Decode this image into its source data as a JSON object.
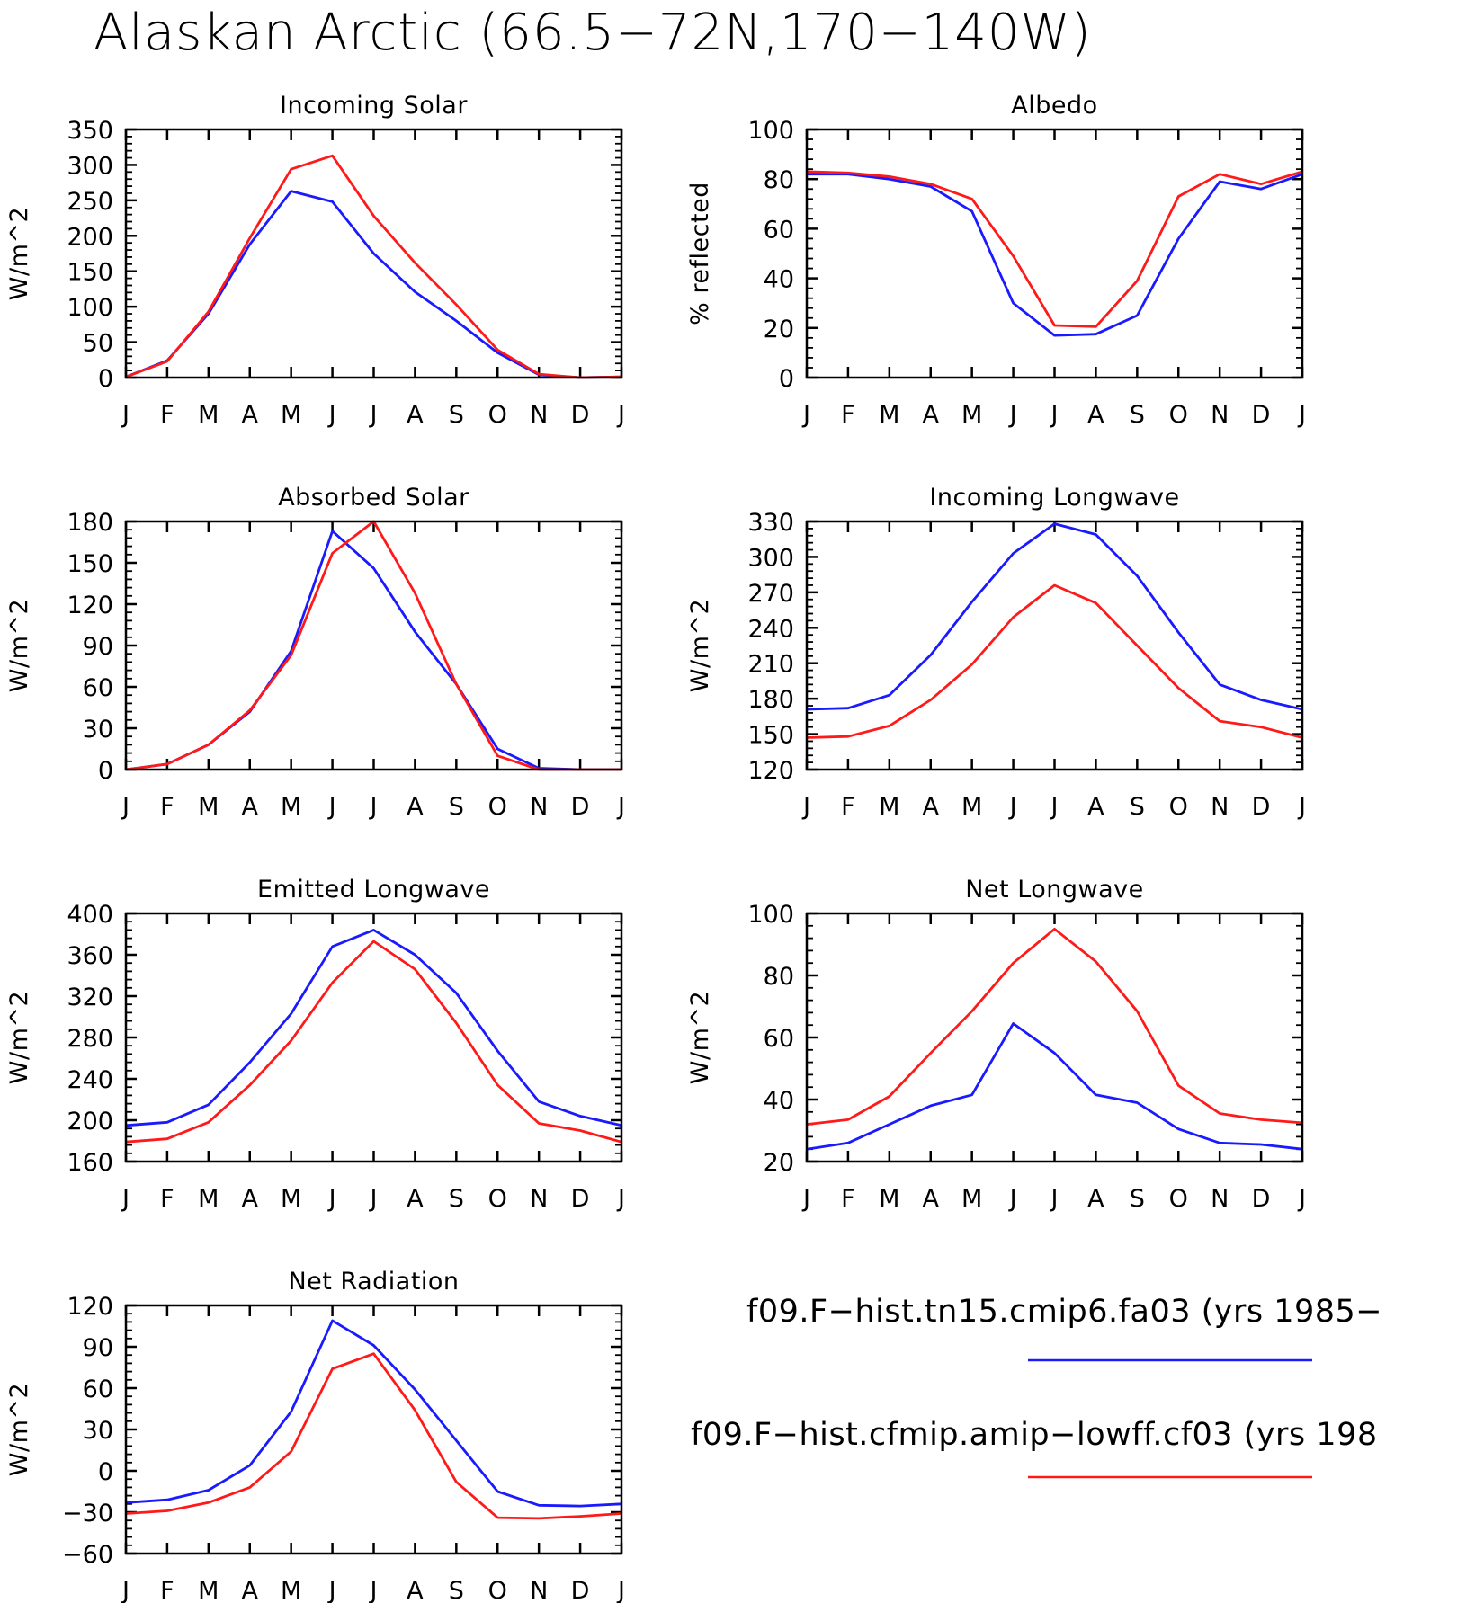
{
  "figure": {
    "title": "Alaskan Arctic (66.5−72N,170−140W)",
    "colors": {
      "run1": "#1a1aff",
      "run2": "#ff1a1a"
    }
  },
  "legend": {
    "entries": [
      {
        "label": "f09.F−hist.tn15.cmip6.fa03 (yrs 1985−",
        "color": "#1a1aff"
      },
      {
        "label": "f09.F−hist.cfmip.amip−lowff.cf03 (yrs 198",
        "color": "#ff1a1a"
      }
    ]
  },
  "chart_data": [
    {
      "type": "line",
      "title": "Incoming Solar",
      "xlabel": "",
      "ylabel": "W/m^2",
      "categories": [
        "J",
        "F",
        "M",
        "A",
        "M",
        "J",
        "J",
        "A",
        "S",
        "O",
        "N",
        "D",
        "J"
      ],
      "ylim": [
        0,
        350
      ],
      "yticks": [
        0,
        50,
        100,
        150,
        200,
        250,
        300,
        350
      ],
      "ytick_labels": [
        "0",
        "50",
        "100",
        "150",
        "200",
        "250",
        "300",
        "350"
      ],
      "series": [
        {
          "color": "#1a1aff",
          "values": [
            1,
            24,
            90,
            188,
            263,
            248,
            175,
            121,
            80,
            35,
            4,
            0,
            1
          ]
        },
        {
          "color": "#ff1a1a",
          "values": [
            1,
            23,
            93,
            197,
            294,
            313,
            228,
            162,
            103,
            39,
            5,
            0,
            1
          ]
        }
      ]
    },
    {
      "type": "line",
      "title": "Albedo",
      "xlabel": "",
      "ylabel": "% reflected",
      "categories": [
        "J",
        "F",
        "M",
        "A",
        "M",
        "J",
        "J",
        "A",
        "S",
        "O",
        "N",
        "D",
        "J"
      ],
      "ylim": [
        0,
        100
      ],
      "yticks": [
        0,
        20,
        40,
        60,
        80,
        100
      ],
      "ytick_labels": [
        "0",
        "20",
        "40",
        "60",
        "80",
        "100"
      ],
      "series": [
        {
          "color": "#1a1aff",
          "values": [
            82,
            82,
            80,
            77,
            67,
            30,
            17,
            17.5,
            25,
            56,
            79,
            76,
            82
          ]
        },
        {
          "color": "#ff1a1a",
          "values": [
            83,
            82.5,
            81,
            78,
            72,
            49,
            21,
            20.5,
            39,
            73,
            82,
            78,
            83
          ]
        }
      ]
    },
    {
      "type": "line",
      "title": "Absorbed Solar",
      "xlabel": "",
      "ylabel": "W/m^2",
      "categories": [
        "J",
        "F",
        "M",
        "A",
        "M",
        "J",
        "J",
        "A",
        "S",
        "O",
        "N",
        "D",
        "J"
      ],
      "ylim": [
        0,
        180
      ],
      "yticks": [
        0,
        30,
        60,
        90,
        120,
        150,
        180
      ],
      "ytick_labels": [
        "0",
        "30",
        "60",
        "90",
        "120",
        "150",
        "180"
      ],
      "series": [
        {
          "color": "#1a1aff",
          "values": [
            0,
            4,
            18,
            42,
            86,
            173,
            146,
            100,
            62,
            15,
            1,
            0,
            0
          ]
        },
        {
          "color": "#ff1a1a",
          "values": [
            0,
            4,
            18,
            43,
            83,
            157,
            180,
            128,
            62,
            10,
            0,
            0,
            0
          ]
        }
      ]
    },
    {
      "type": "line",
      "title": "Incoming Longwave",
      "xlabel": "",
      "ylabel": "W/m^2",
      "categories": [
        "J",
        "F",
        "M",
        "A",
        "M",
        "J",
        "J",
        "A",
        "S",
        "O",
        "N",
        "D",
        "J"
      ],
      "ylim": [
        120,
        330
      ],
      "yticks": [
        120,
        150,
        180,
        210,
        240,
        270,
        300,
        330
      ],
      "ytick_labels": [
        "120",
        "150",
        "180",
        "210",
        "240",
        "270",
        "300",
        "330"
      ],
      "series": [
        {
          "color": "#1a1aff",
          "values": [
            171,
            172,
            183,
            217,
            262,
            303,
            328,
            319,
            284,
            236,
            192,
            179,
            171
          ]
        },
        {
          "color": "#ff1a1a",
          "values": [
            147,
            148,
            157,
            179,
            209,
            249,
            276,
            261,
            225,
            189,
            161,
            156,
            147
          ]
        }
      ]
    },
    {
      "type": "line",
      "title": "Emitted Longwave",
      "xlabel": "",
      "ylabel": "W/m^2",
      "categories": [
        "J",
        "F",
        "M",
        "A",
        "M",
        "J",
        "J",
        "A",
        "S",
        "O",
        "N",
        "D",
        "J"
      ],
      "ylim": [
        160,
        400
      ],
      "yticks": [
        160,
        200,
        240,
        280,
        320,
        360,
        400
      ],
      "ytick_labels": [
        "160",
        "200",
        "240",
        "280",
        "320",
        "360",
        "400"
      ],
      "series": [
        {
          "color": "#1a1aff",
          "values": [
            195,
            198,
            215,
            256,
            303,
            368,
            384,
            360,
            323,
            267,
            218,
            204,
            195
          ]
        },
        {
          "color": "#ff1a1a",
          "values": [
            179,
            182,
            198,
            234,
            277,
            333,
            373,
            346,
            294,
            234,
            197,
            190,
            179
          ]
        }
      ]
    },
    {
      "type": "line",
      "title": "Net Longwave",
      "xlabel": "",
      "ylabel": "W/m^2",
      "categories": [
        "J",
        "F",
        "M",
        "A",
        "M",
        "J",
        "J",
        "A",
        "S",
        "O",
        "N",
        "D",
        "J"
      ],
      "ylim": [
        20,
        100
      ],
      "yticks": [
        20,
        40,
        60,
        80,
        100
      ],
      "ytick_labels": [
        "20",
        "40",
        "60",
        "80",
        "100"
      ],
      "series": [
        {
          "color": "#1a1aff",
          "values": [
            24,
            26,
            32,
            38,
            41.5,
            64.5,
            55,
            41.5,
            39,
            30.5,
            26,
            25.5,
            24
          ]
        },
        {
          "color": "#ff1a1a",
          "values": [
            32,
            33.5,
            41,
            55,
            68.5,
            84,
            95,
            84.5,
            68.5,
            44.5,
            35.5,
            33.5,
            32.5
          ]
        }
      ]
    },
    {
      "type": "line",
      "title": "Net Radiation",
      "xlabel": "",
      "ylabel": "W/m^2",
      "categories": [
        "J",
        "F",
        "M",
        "A",
        "M",
        "J",
        "J",
        "A",
        "S",
        "O",
        "N",
        "D",
        "J"
      ],
      "ylim": [
        -60,
        120
      ],
      "yticks": [
        -60,
        -30,
        0,
        30,
        60,
        90,
        120
      ],
      "ytick_labels": [
        "−60",
        "−30",
        "0",
        "30",
        "60",
        "90",
        "120"
      ],
      "series": [
        {
          "color": "#1a1aff",
          "values": [
            -23,
            -21,
            -14,
            4,
            43,
            109,
            91,
            59,
            22,
            -15,
            -25,
            -25.5,
            -24
          ]
        },
        {
          "color": "#ff1a1a",
          "values": [
            -31,
            -29,
            -23,
            -12,
            14,
            74,
            85,
            44,
            -8,
            -34,
            -34.5,
            -33,
            -31
          ]
        }
      ]
    }
  ]
}
